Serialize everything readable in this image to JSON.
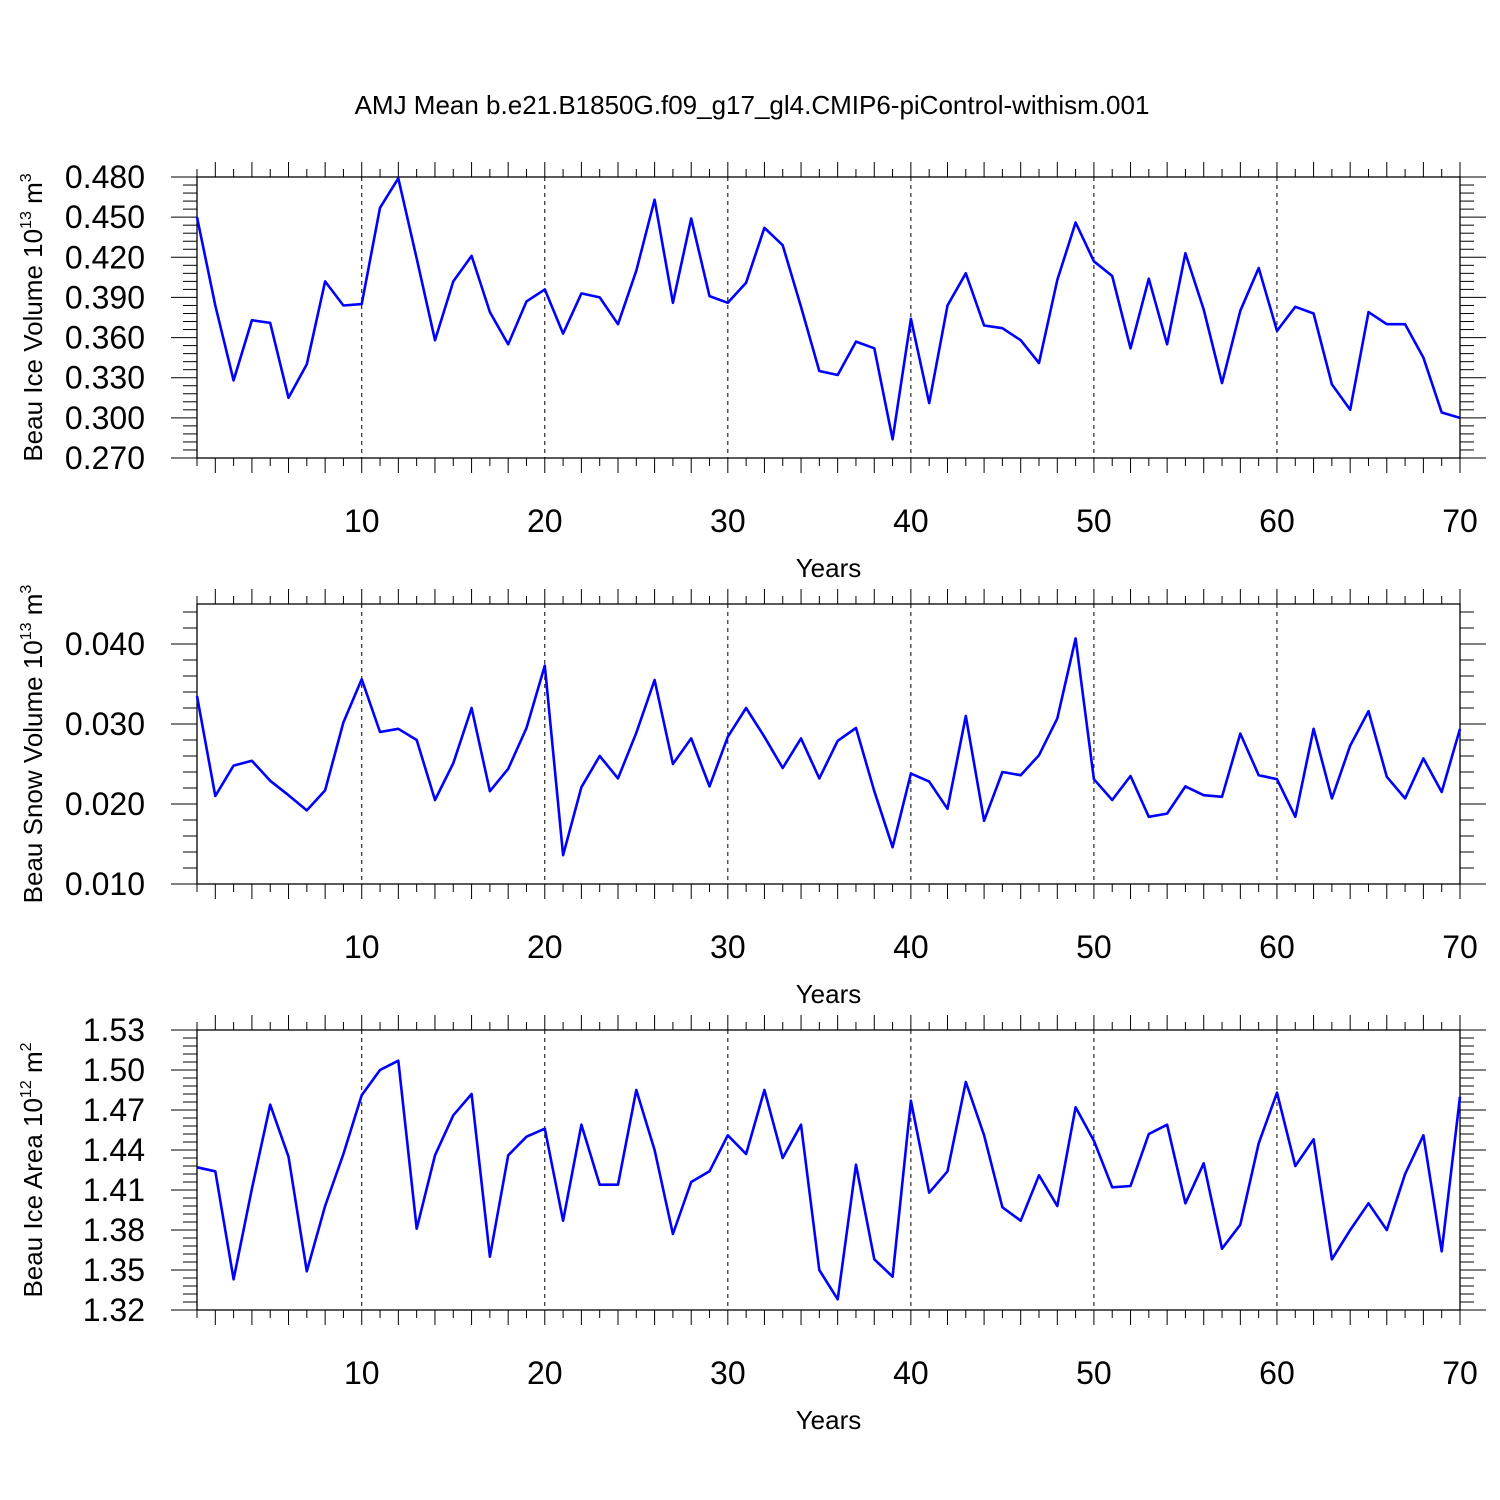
{
  "figure": {
    "title": "AMJ Mean b.e21.B1850G.f09_g17_gl4.CMIP6-piControl-withism.001"
  },
  "chart_data": [
    {
      "type": "line",
      "xlabel": "Years",
      "ylabel": {
        "main": "Beau Ice Volume 10",
        "exp": "13",
        "unit": " m",
        "unit_exp": "3"
      },
      "xlim": [
        1,
        70
      ],
      "ylim": [
        0.27,
        0.48
      ],
      "xticks": [
        10,
        20,
        30,
        40,
        50,
        60,
        70
      ],
      "yticks": [
        "0.270",
        "0.300",
        "0.330",
        "0.360",
        "0.390",
        "0.420",
        "0.450",
        "0.480"
      ],
      "grid": "vertical dashed at x labels",
      "color": "#0000ff",
      "x": [
        1,
        2,
        3,
        4,
        5,
        6,
        7,
        8,
        9,
        10,
        11,
        12,
        13,
        14,
        15,
        16,
        17,
        18,
        19,
        20,
        21,
        22,
        23,
        24,
        25,
        26,
        27,
        28,
        29,
        30,
        31,
        32,
        33,
        34,
        35,
        36,
        37,
        38,
        39,
        40,
        41,
        42,
        43,
        44,
        45,
        46,
        47,
        48,
        49,
        50,
        51,
        52,
        53,
        54,
        55,
        56,
        57,
        58,
        59,
        60,
        61,
        62,
        63,
        64,
        65,
        66,
        67,
        68,
        69,
        70
      ],
      "values": [
        0.45,
        0.384,
        0.328,
        0.373,
        0.371,
        0.315,
        0.34,
        0.402,
        0.384,
        0.385,
        0.457,
        0.479,
        0.419,
        0.358,
        0.402,
        0.421,
        0.379,
        0.355,
        0.387,
        0.396,
        0.363,
        0.393,
        0.39,
        0.37,
        0.41,
        0.463,
        0.386,
        0.449,
        0.391,
        0.386,
        0.401,
        0.442,
        0.429,
        0.383,
        0.335,
        0.332,
        0.357,
        0.352,
        0.284,
        0.374,
        0.311,
        0.384,
        0.408,
        0.369,
        0.367,
        0.358,
        0.341,
        0.403,
        0.446,
        0.417,
        0.406,
        0.352,
        0.404,
        0.355,
        0.423,
        0.381,
        0.326,
        0.38,
        0.412,
        0.365,
        0.383,
        0.378,
        0.325,
        0.306,
        0.379,
        0.37,
        0.37,
        0.345,
        0.304,
        0.3
      ]
    },
    {
      "type": "line",
      "xlabel": "Years",
      "ylabel": {
        "main": "Beau Snow Volume 10",
        "exp": "13",
        "unit": " m",
        "unit_exp": "3"
      },
      "xlim": [
        1,
        70
      ],
      "ylim": [
        0.01,
        0.045
      ],
      "xticks": [
        10,
        20,
        30,
        40,
        50,
        60,
        70
      ],
      "yticks": [
        "0.010",
        "0.020",
        "0.030",
        "0.040"
      ],
      "grid": "vertical dashed at x labels",
      "color": "#0000ff",
      "x": [
        1,
        2,
        3,
        4,
        5,
        6,
        7,
        8,
        9,
        10,
        11,
        12,
        13,
        14,
        15,
        16,
        17,
        18,
        19,
        20,
        21,
        22,
        23,
        24,
        25,
        26,
        27,
        28,
        29,
        30,
        31,
        32,
        33,
        34,
        35,
        36,
        37,
        38,
        39,
        40,
        41,
        42,
        43,
        44,
        45,
        46,
        47,
        48,
        49,
        50,
        51,
        52,
        53,
        54,
        55,
        56,
        57,
        58,
        59,
        60,
        61,
        62,
        63,
        64,
        65,
        66,
        67,
        68,
        69,
        70
      ],
      "values": [
        0.0335,
        0.021,
        0.0248,
        0.0254,
        0.0229,
        0.0211,
        0.0192,
        0.0217,
        0.0302,
        0.0356,
        0.029,
        0.0294,
        0.028,
        0.0205,
        0.0251,
        0.032,
        0.0216,
        0.0244,
        0.0295,
        0.0373,
        0.0136,
        0.0221,
        0.026,
        0.0232,
        0.0289,
        0.0355,
        0.025,
        0.0282,
        0.0222,
        0.0284,
        0.032,
        0.0284,
        0.0245,
        0.0282,
        0.0232,
        0.0279,
        0.0295,
        0.0216,
        0.0146,
        0.0238,
        0.0228,
        0.0194,
        0.031,
        0.0179,
        0.024,
        0.0236,
        0.0261,
        0.0307,
        0.0407,
        0.0231,
        0.0205,
        0.0235,
        0.0184,
        0.0188,
        0.0222,
        0.0211,
        0.0209,
        0.0288,
        0.0236,
        0.0231,
        0.0184,
        0.0294,
        0.0207,
        0.0273,
        0.0316,
        0.0234,
        0.0207,
        0.0257,
        0.0215,
        0.0294
      ]
    },
    {
      "type": "line",
      "xlabel": "Years",
      "ylabel": {
        "main": "Beau Ice Area 10",
        "exp": "12",
        "unit": " m",
        "unit_exp": "2"
      },
      "xlim": [
        1,
        70
      ],
      "ylim": [
        1.32,
        1.53
      ],
      "xticks": [
        10,
        20,
        30,
        40,
        50,
        60,
        70
      ],
      "yticks": [
        "1.32",
        "1.35",
        "1.38",
        "1.41",
        "1.44",
        "1.47",
        "1.50",
        "1.53"
      ],
      "grid": "vertical dashed at x labels",
      "color": "#0000ff",
      "x": [
        1,
        2,
        3,
        4,
        5,
        6,
        7,
        8,
        9,
        10,
        11,
        12,
        13,
        14,
        15,
        16,
        17,
        18,
        19,
        20,
        21,
        22,
        23,
        24,
        25,
        26,
        27,
        28,
        29,
        30,
        31,
        32,
        33,
        34,
        35,
        36,
        37,
        38,
        39,
        40,
        41,
        42,
        43,
        44,
        45,
        46,
        47,
        48,
        49,
        50,
        51,
        52,
        53,
        54,
        55,
        56,
        57,
        58,
        59,
        60,
        61,
        62,
        63,
        64,
        65,
        66,
        67,
        68,
        69,
        70
      ],
      "values": [
        1.427,
        1.424,
        1.343,
        1.411,
        1.474,
        1.435,
        1.349,
        1.398,
        1.437,
        1.481,
        1.5,
        1.507,
        1.381,
        1.436,
        1.466,
        1.482,
        1.36,
        1.436,
        1.45,
        1.456,
        1.387,
        1.459,
        1.414,
        1.414,
        1.485,
        1.44,
        1.377,
        1.416,
        1.424,
        1.451,
        1.437,
        1.485,
        1.434,
        1.459,
        1.35,
        1.328,
        1.429,
        1.358,
        1.345,
        1.477,
        1.408,
        1.424,
        1.491,
        1.451,
        1.397,
        1.387,
        1.421,
        1.398,
        1.472,
        1.447,
        1.412,
        1.413,
        1.452,
        1.459,
        1.4,
        1.43,
        1.366,
        1.384,
        1.445,
        1.483,
        1.428,
        1.448,
        1.358,
        1.38,
        1.4,
        1.38,
        1.422,
        1.451,
        1.364,
        1.48
      ]
    }
  ]
}
